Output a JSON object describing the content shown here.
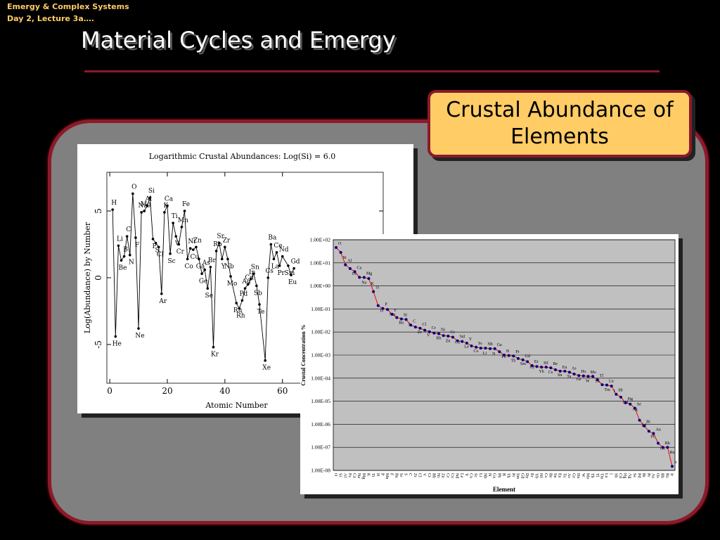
{
  "header": {
    "line1": "Emergy & Complex Systems",
    "line2": "Day 2, Lecture 3a…."
  },
  "title": "Material Cycles and Emergy",
  "callout": "Crustal Abundance of Elements",
  "chart_data": [
    {
      "type": "line",
      "title": "Logarithmic Crustal Abundances: Log(Si) = 6.0",
      "xlabel": "Atomic Number",
      "ylabel": "Log(Abundance) by Number",
      "x": [
        1,
        2,
        3,
        4,
        5,
        6,
        7,
        8,
        9,
        10,
        11,
        12,
        13,
        14,
        15,
        16,
        17,
        18,
        19,
        20,
        21,
        22,
        23,
        24,
        25,
        26,
        27,
        28,
        29,
        30,
        31,
        32,
        33,
        34,
        35,
        36,
        37,
        38,
        39,
        40,
        41,
        42,
        44,
        45,
        46,
        47,
        48,
        49,
        50,
        51,
        52,
        54,
        55,
        56,
        57,
        58,
        59,
        60,
        62,
        63,
        64
      ],
      "values": [
        5.1,
        -4.4,
        2.4,
        1.3,
        1.6,
        3.1,
        1.7,
        6.3,
        3.0,
        -3.8,
        4.9,
        5.0,
        5.4,
        6.0,
        2.9,
        2.6,
        2.3,
        -1.2,
        4.9,
        5.4,
        1.8,
        4.1,
        3.1,
        2.5,
        3.8,
        5.0,
        1.4,
        2.2,
        2.1,
        2.3,
        1.4,
        0.3,
        0.6,
        -0.8,
        0.8,
        -5.2,
        2.0,
        2.6,
        1.4,
        2.3,
        1.4,
        0.1,
        -1.9,
        -2.3,
        -1.7,
        -0.8,
        -0.5,
        -0.1,
        0.3,
        -0.6,
        -2.0,
        -6.2,
        0.0,
        2.5,
        1.4,
        1.9,
        0.9,
        1.6,
        0.9,
        0.2,
        0.7
      ],
      "labels": [
        "H",
        "He",
        "Li",
        "Be",
        "B",
        "C",
        "N",
        "O",
        "F",
        "Ne",
        "Na",
        "Mg",
        "Al",
        "Si",
        "P",
        "S",
        "Cl",
        "Ar",
        "K",
        "Ca",
        "Sc",
        "Ti",
        "V",
        "Cr",
        "Mn",
        "Fe",
        "Co",
        "Ni",
        "Cu",
        "Zn",
        "Ga",
        "Ge",
        "As",
        "Se",
        "Br",
        "Kr",
        "Rb",
        "Sr",
        "Y",
        "Zr",
        "Nb",
        "Mo",
        "Ru",
        "Rh",
        "Pd",
        "Ag",
        "Cd",
        "In",
        "Sn",
        "Sb",
        "Te",
        "Xe",
        "Cs",
        "Ba",
        "La",
        "Ce",
        "Pr",
        "Nd",
        "Sm",
        "Eu",
        "Gd"
      ],
      "xlim": [
        -1,
        95
      ],
      "ylim": [
        -7.9,
        7.9
      ],
      "xticks": [
        0,
        20,
        40,
        60
      ],
      "yticks": [
        -5,
        0,
        5
      ],
      "color": "#000000"
    },
    {
      "type": "line",
      "xlabel": "Element",
      "ylabel": "Crustal Concentration %",
      "categories": [
        "O",
        "Si",
        "Al",
        "Fe",
        "Ca",
        "Na",
        "Mg",
        "K",
        "Ti",
        "H",
        "P",
        "Mn",
        "F",
        "Ba",
        "Sr",
        "S",
        "C",
        "Zr",
        "Cl",
        "V",
        "Cr",
        "Rb",
        "Ni",
        "Zn",
        "Ce",
        "Cu",
        "Nd",
        "La",
        "Y",
        "Co",
        "Sc",
        "Li",
        "Nb",
        "N",
        "Ga",
        "Pb",
        "B",
        "Th",
        "Pr",
        "Sm",
        "Gd",
        "Dy",
        "Er",
        "Yb",
        "Hf",
        "Cs",
        "Be",
        "Sn",
        "Eu",
        "Ta",
        "As",
        "Ge",
        "Ho",
        "W",
        "Mo",
        "Tb",
        "Tl",
        "Tm",
        "Lu",
        "I",
        "Sb",
        "Cd",
        "Hg",
        "Ag",
        "Se",
        "Pd",
        "Bi",
        "Pt",
        "Au",
        "Os",
        "Rh",
        "Ru",
        "Ir"
      ],
      "values": [
        46.1,
        28.2,
        8.23,
        5.63,
        4.15,
        2.36,
        2.33,
        2.09,
        0.565,
        0.14,
        0.105,
        0.095,
        0.0585,
        0.0425,
        0.037,
        0.035,
        0.02,
        0.0165,
        0.0145,
        0.012,
        0.0102,
        0.009,
        0.0084,
        0.007,
        0.00665,
        0.006,
        0.00415,
        0.0039,
        0.0033,
        0.0025,
        0.0022,
        0.002,
        0.002,
        0.0019,
        0.0019,
        0.0014,
        0.001,
        0.00096,
        0.00092,
        0.00071,
        0.00062,
        0.00052,
        0.00035,
        0.00032,
        0.0003,
        0.0003,
        0.00028,
        0.00023,
        0.0002,
        0.0002,
        0.00018,
        0.00015,
        0.00013,
        0.000125,
        0.00012,
        0.00012,
        8.5e-05,
        5.2e-05,
        5e-05,
        4.5e-05,
        2e-05,
        1.5e-05,
        8.5e-06,
        7.5e-06,
        5e-06,
        1.5e-06,
        8.5e-07,
        5e-07,
        4e-07,
        1.5e-07,
        1e-07,
        1e-07,
        1.5e-08
      ],
      "log_scale": true,
      "ylim": [
        1e-08,
        100
      ],
      "yticks": [
        {
          "value": 100,
          "label": "1.00E+02"
        },
        {
          "value": 10,
          "label": "1.00E+01"
        },
        {
          "value": 1,
          "label": "1.00E+00"
        },
        {
          "value": 0.1,
          "label": "1.00E-01"
        },
        {
          "value": 0.01,
          "label": "1.00E-02"
        },
        {
          "value": 0.001,
          "label": "1.00E-03"
        },
        {
          "value": 0.0001,
          "label": "1.00E-04"
        },
        {
          "value": 1e-05,
          "label": "1.00E-05"
        },
        {
          "value": 1e-06,
          "label": "1.00E-06"
        },
        {
          "value": 1e-07,
          "label": "1.00E-07"
        },
        {
          "value": 1e-08,
          "label": "1.00E-08"
        }
      ],
      "grid": true,
      "color": "#ff0000",
      "marker_color": "#000080"
    }
  ]
}
